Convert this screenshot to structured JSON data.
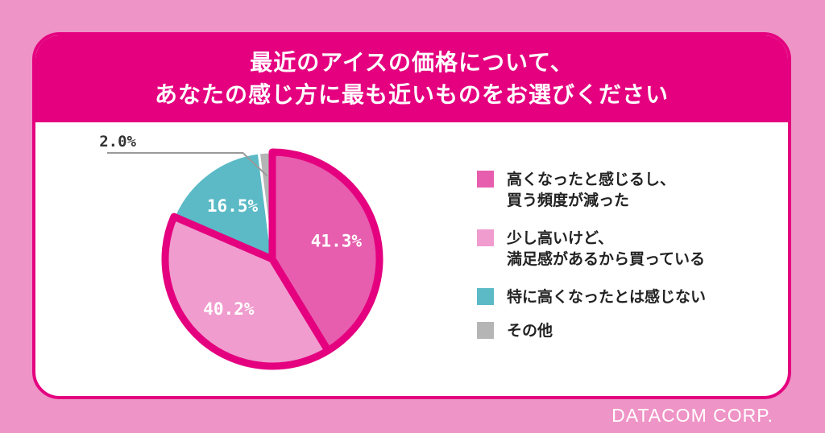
{
  "title": {
    "line1": "最近のアイスの価格について、",
    "line2": "あなたの感じ方に最も近いものをお選びください"
  },
  "chart_data": {
    "type": "pie",
    "categories": [
      "高くなったと感じるし、\n買う頻度が減った",
      "少し高いけど、\n満足感があるから買っている",
      "特に高くなったとは感じない",
      "その他"
    ],
    "values": [
      41.3,
      40.2,
      16.5,
      2.0
    ],
    "labels": [
      "41.3%",
      "40.2%",
      "16.5%",
      "2.0%"
    ],
    "colors": [
      "#e75eae",
      "#f09cce",
      "#5bbac6",
      "#b5b5b5"
    ],
    "legend_position": "right"
  },
  "brand": "DATACOM CORP."
}
